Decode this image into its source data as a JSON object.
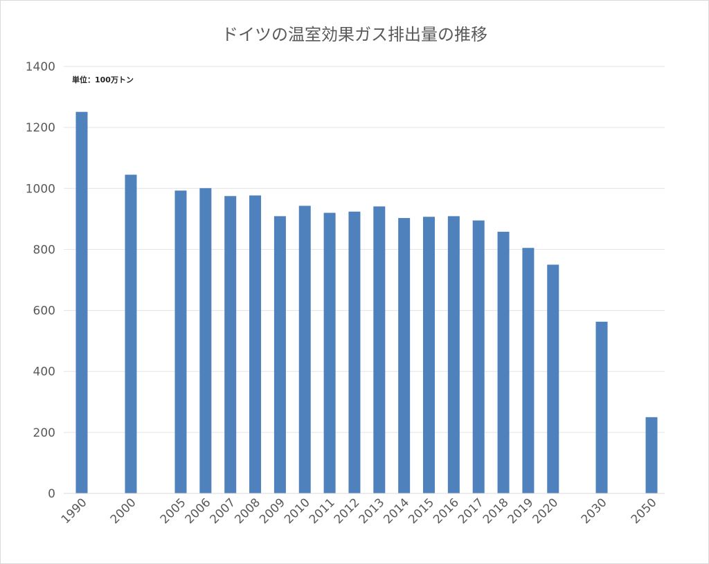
{
  "chart_data": {
    "type": "bar",
    "title": "ドイツの温室効果ガス排出量の推移",
    "unit_note": "単位：100万トン",
    "xlabel": "",
    "ylabel": "",
    "ylim": [
      0,
      1400
    ],
    "yticks": [
      0,
      200,
      400,
      600,
      800,
      1000,
      1200,
      1400
    ],
    "grid": true,
    "legend": "none",
    "bar_color": "#4f81bd",
    "categories": [
      "1990",
      "2000",
      "2005",
      "2006",
      "2007",
      "2008",
      "2009",
      "2010",
      "2011",
      "2012",
      "2013",
      "2014",
      "2015",
      "2016",
      "2017",
      "2018",
      "2019",
      "2020",
      "2030",
      "2050"
    ],
    "values": [
      1251,
      1045,
      993,
      1001,
      975,
      977,
      909,
      943,
      920,
      924,
      941,
      903,
      907,
      909,
      895,
      858,
      805,
      750,
      563,
      250
    ]
  }
}
